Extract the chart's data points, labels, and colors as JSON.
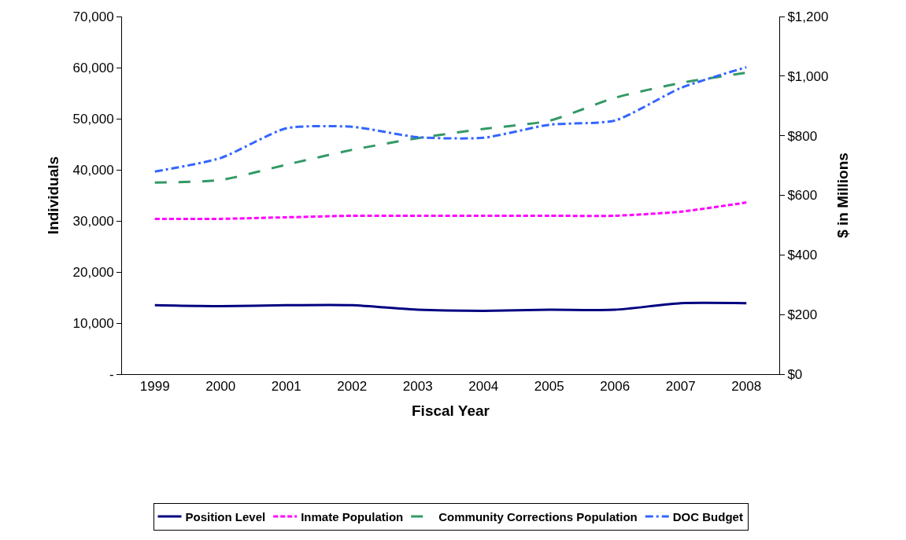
{
  "chart_data": {
    "type": "line",
    "xlabel": "Fiscal Year",
    "ylabel": "Individuals",
    "y2label": "$ in Millions",
    "categories": [
      "1999",
      "2000",
      "2001",
      "2002",
      "2003",
      "2004",
      "2005",
      "2006",
      "2007",
      "2008"
    ],
    "series": [
      {
        "name": "Position Level",
        "color": "#000080",
        "line_style": "solid",
        "values": [
          13500,
          13300,
          13500,
          13500,
          12600,
          12400,
          12600,
          12600,
          13900,
          13900
        ]
      },
      {
        "name": "Inmate Population",
        "color": "#ff00ff",
        "line_style": "dotted",
        "values": [
          30400,
          30400,
          30700,
          31000,
          31000,
          31000,
          31000,
          31000,
          31800,
          33600
        ]
      },
      {
        "name": "Community Corrections Population",
        "color": "#339966",
        "line_style": "dashed",
        "values": [
          37500,
          38000,
          41000,
          43900,
          46200,
          48000,
          49600,
          54100,
          57000,
          59000
        ]
      },
      {
        "name": "DOC Budget",
        "color": "#3366ff",
        "line_style": "dashdot",
        "axis": "y2",
        "values": [
          680,
          725,
          825,
          830,
          795,
          793,
          837,
          851,
          960,
          1030
        ]
      }
    ],
    "ylim": [
      0,
      70000
    ],
    "yticks": [
      {
        "value": 0,
        "label": "-"
      },
      {
        "value": 10000,
        "label": "10,000"
      },
      {
        "value": 20000,
        "label": "20,000"
      },
      {
        "value": 30000,
        "label": "30,000"
      },
      {
        "value": 40000,
        "label": "40,000"
      },
      {
        "value": 50000,
        "label": "50,000"
      },
      {
        "value": 60000,
        "label": "60,000"
      },
      {
        "value": 70000,
        "label": "70,000"
      }
    ],
    "y2lim": [
      0,
      1200
    ],
    "y2ticks": [
      {
        "value": 0,
        "label": "$0"
      },
      {
        "value": 200,
        "label": "$200"
      },
      {
        "value": 400,
        "label": "$400"
      },
      {
        "value": 600,
        "label": "$600"
      },
      {
        "value": 800,
        "label": "$800"
      },
      {
        "value": 1000,
        "label": "$1,000"
      },
      {
        "value": 1200,
        "label": "$1,200"
      }
    ],
    "legend": "bottom",
    "marker": "none"
  }
}
